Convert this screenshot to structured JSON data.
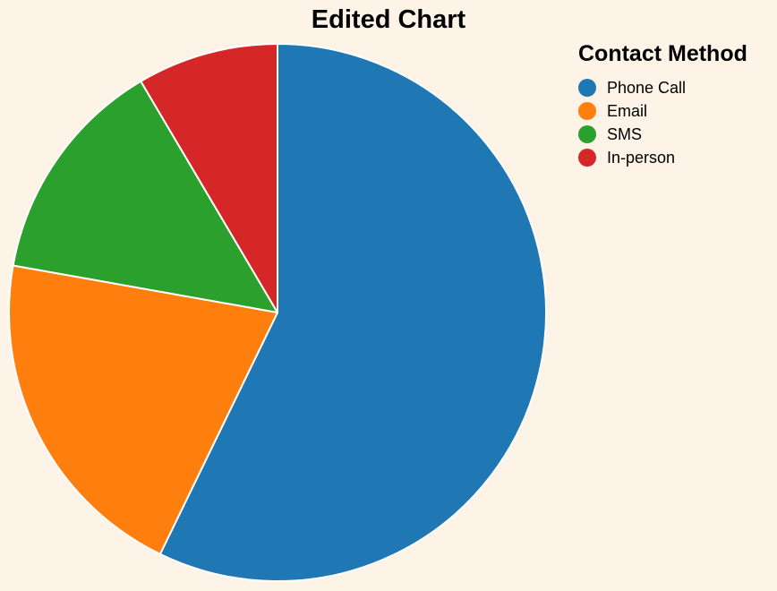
{
  "chart_data": {
    "type": "pie",
    "title": "Edited Chart",
    "legend_title": "Contact Method",
    "legend_position": "right",
    "categories": [
      "Phone Call",
      "Email",
      "SMS",
      "In-person"
    ],
    "values": [
      57.2,
      20.6,
      13.7,
      8.5
    ],
    "colors": [
      "#1f77b4",
      "#ff7f0e",
      "#2ca02c",
      "#d62728"
    ],
    "start_angle": "top",
    "direction": "clockwise"
  }
}
